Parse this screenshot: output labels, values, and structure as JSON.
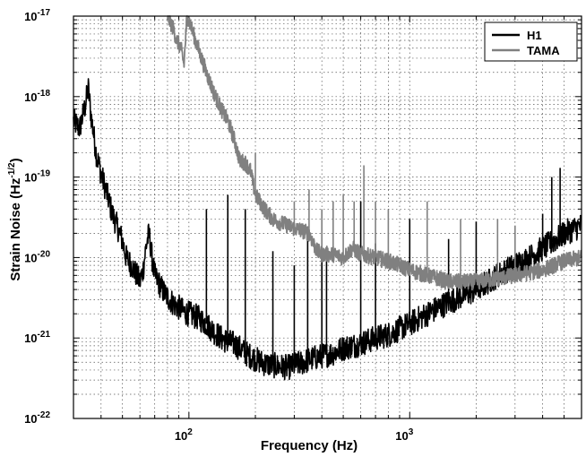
{
  "chart_data": {
    "type": "line",
    "title": "",
    "xlabel": "Frequency (Hz)",
    "ylabel_main": "Strain Noise (Hz",
    "ylabel_exp": "-1/2",
    "ylabel_close": ")",
    "xscale": "log",
    "yscale": "log",
    "xlim": [
      30,
      6000
    ],
    "ylim": [
      1e-22,
      1e-17
    ],
    "grid": true,
    "legend_position": "top-right",
    "x_ticks": [
      {
        "value": 100,
        "base": "10",
        "exp": "2"
      },
      {
        "value": 1000,
        "base": "10",
        "exp": "3"
      }
    ],
    "y_ticks": [
      {
        "value": 1e-17,
        "base": "10",
        "exp": "-17"
      },
      {
        "value": 1e-18,
        "base": "10",
        "exp": "-18"
      },
      {
        "value": 1e-19,
        "base": "10",
        "exp": "-19"
      },
      {
        "value": 1e-20,
        "base": "10",
        "exp": "-20"
      },
      {
        "value": 1e-21,
        "base": "10",
        "exp": "-21"
      },
      {
        "value": 1e-22,
        "base": "10",
        "exp": "-22"
      }
    ],
    "series": [
      {
        "name": "H1",
        "color": "#000000",
        "points": [
          [
            30,
            5e-19
          ],
          [
            32,
            4e-19
          ],
          [
            34,
            8e-19
          ],
          [
            35,
            1.3e-18
          ],
          [
            36,
            6e-19
          ],
          [
            38,
            2e-19
          ],
          [
            40,
            1.1e-19
          ],
          [
            42,
            7e-20
          ],
          [
            45,
            3.5e-20
          ],
          [
            48,
            2.2e-20
          ],
          [
            50,
            1.6e-20
          ],
          [
            52,
            1e-20
          ],
          [
            55,
            8e-21
          ],
          [
            58,
            6e-21
          ],
          [
            60,
            5e-21
          ],
          [
            62,
            7e-21
          ],
          [
            64,
            1.4e-20
          ],
          [
            66,
            2e-20
          ],
          [
            68,
            1e-20
          ],
          [
            70,
            6e-21
          ],
          [
            74,
            4.5e-21
          ],
          [
            78,
            3.5e-21
          ],
          [
            82,
            3e-21
          ],
          [
            86,
            2.6e-21
          ],
          [
            90,
            2.4e-21
          ],
          [
            95,
            2.1e-21
          ],
          [
            100,
            2e-21
          ],
          [
            110,
            1.8e-21
          ],
          [
            120,
            1.5e-21
          ],
          [
            130,
            1.2e-21
          ],
          [
            140,
            1e-21
          ],
          [
            150,
            9e-22
          ],
          [
            160,
            8.5e-22
          ],
          [
            170,
            7.5e-22
          ],
          [
            180,
            6.5e-22
          ],
          [
            200,
            5.5e-22
          ],
          [
            220,
            4.8e-22
          ],
          [
            250,
            4.5e-22
          ],
          [
            280,
            4.3e-22
          ],
          [
            300,
            4.6e-22
          ],
          [
            330,
            5e-22
          ],
          [
            360,
            5.5e-22
          ],
          [
            400,
            6e-22
          ],
          [
            450,
            6.5e-22
          ],
          [
            500,
            7.5e-22
          ],
          [
            600,
            8.5e-22
          ],
          [
            700,
            1e-21
          ],
          [
            800,
            1.1e-21
          ],
          [
            900,
            1.3e-21
          ],
          [
            1000,
            1.5e-21
          ],
          [
            1200,
            2e-21
          ],
          [
            1500,
            2.8e-21
          ],
          [
            2000,
            4e-21
          ],
          [
            2500,
            6e-21
          ],
          [
            3000,
            8e-21
          ],
          [
            3500,
            1e-20
          ],
          [
            4000,
            1.3e-20
          ],
          [
            4500,
            1.6e-20
          ],
          [
            5000,
            2e-20
          ],
          [
            6000,
            2.5e-20
          ]
        ],
        "lines": [
          [
            120,
            4e-20
          ],
          [
            150,
            6e-20
          ],
          [
            180,
            4e-20
          ],
          [
            240,
            1.2e-20
          ],
          [
            300,
            8e-21
          ],
          [
            345,
            2e-20
          ],
          [
            400,
            1e-20
          ],
          [
            420,
            1.3e-20
          ],
          [
            600,
            5e-20
          ],
          [
            700,
            1.5e-20
          ],
          [
            1000,
            3e-20
          ],
          [
            1500,
            1.7e-20
          ],
          [
            2000,
            2.8e-20
          ],
          [
            4000,
            3.5e-20
          ],
          [
            4400,
            1e-19
          ],
          [
            4800,
            1.3e-19
          ]
        ]
      },
      {
        "name": "TAMA",
        "color": "#808080",
        "points": [
          [
            80,
            1e-17
          ],
          [
            85,
            7e-18
          ],
          [
            88,
            5e-18
          ],
          [
            92,
            4e-18
          ],
          [
            95,
            2.5e-18
          ],
          [
            98,
            1e-17
          ],
          [
            100,
            9e-18
          ],
          [
            103,
            7e-18
          ],
          [
            110,
            4e-18
          ],
          [
            120,
            2e-18
          ],
          [
            130,
            1.1e-18
          ],
          [
            140,
            7e-19
          ],
          [
            150,
            5e-19
          ],
          [
            160,
            3e-19
          ],
          [
            170,
            1.6e-19
          ],
          [
            180,
            1.5e-19
          ],
          [
            190,
            1.2e-19
          ],
          [
            200,
            6e-20
          ],
          [
            220,
            4e-20
          ],
          [
            240,
            3e-20
          ],
          [
            260,
            2.7e-20
          ],
          [
            280,
            2.5e-20
          ],
          [
            300,
            2.3e-20
          ],
          [
            320,
            2.2e-20
          ],
          [
            350,
            2e-20
          ],
          [
            380,
            1.2e-20
          ],
          [
            400,
            1.1e-20
          ],
          [
            450,
            1.1e-20
          ],
          [
            500,
            1e-20
          ],
          [
            550,
            1.3e-20
          ],
          [
            600,
            1.1e-20
          ],
          [
            700,
            1e-20
          ],
          [
            800,
            9e-21
          ],
          [
            900,
            8e-21
          ],
          [
            1000,
            7e-21
          ],
          [
            1200,
            6e-21
          ],
          [
            1500,
            5e-21
          ],
          [
            2000,
            5e-21
          ],
          [
            2500,
            5.5e-21
          ],
          [
            3000,
            6e-21
          ],
          [
            3500,
            6.5e-21
          ],
          [
            4000,
            7e-21
          ],
          [
            4500,
            8e-21
          ],
          [
            5000,
            9e-21
          ],
          [
            6000,
            1e-20
          ]
        ],
        "lines": [
          [
            200,
            2e-19
          ],
          [
            300,
            5e-20
          ],
          [
            350,
            7e-20
          ],
          [
            400,
            4e-20
          ],
          [
            450,
            5e-20
          ],
          [
            500,
            6e-20
          ],
          [
            560,
            5e-20
          ],
          [
            620,
            1.4e-19
          ],
          [
            700,
            5e-20
          ],
          [
            800,
            4e-20
          ],
          [
            1200,
            5e-20
          ],
          [
            1700,
            3e-20
          ],
          [
            2500,
            3e-20
          ],
          [
            3000,
            2.5e-20
          ]
        ]
      }
    ]
  }
}
